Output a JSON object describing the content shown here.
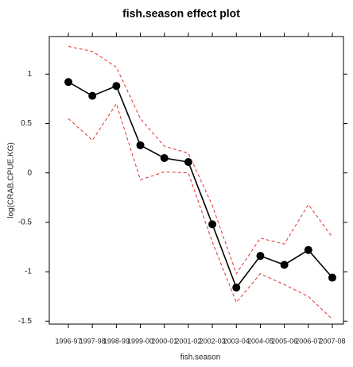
{
  "chart_data": {
    "type": "line",
    "title": "fish.season effect plot",
    "x_label": "fish.season",
    "y_label": "log(CRAB.CPUE.KG)",
    "categories": [
      "1996-97",
      "1997-98",
      "1998-99",
      "1999-00",
      "2000-01",
      "2001-02",
      "2002-03",
      "2003-04",
      "2004-05",
      "2005-06",
      "2006-07",
      "2007-08"
    ],
    "series": [
      {
        "color": "#000000",
        "markers": true,
        "dashed": false,
        "values": [
          0.92,
          0.78,
          0.88,
          0.28,
          0.15,
          0.11,
          -0.52,
          -1.16,
          -0.84,
          -0.93,
          -0.78,
          -1.06
        ]
      },
      {
        "color": "#e03030",
        "markers": false,
        "dashed": true,
        "values": [
          1.28,
          1.23,
          1.07,
          0.55,
          0.27,
          0.2,
          -0.33,
          -1.02,
          -0.66,
          -0.72,
          -0.32,
          -0.65
        ]
      },
      {
        "color": "#e03030",
        "markers": false,
        "dashed": true,
        "values": [
          0.55,
          0.33,
          0.7,
          -0.07,
          0.01,
          0.0,
          -0.7,
          -1.31,
          -1.02,
          -1.13,
          -1.25,
          -1.48
        ]
      }
    ],
    "ylim": [
      -1.53,
      1.38
    ],
    "yticks": [
      -1.5,
      -1,
      -0.5,
      0,
      0.5,
      1
    ]
  }
}
